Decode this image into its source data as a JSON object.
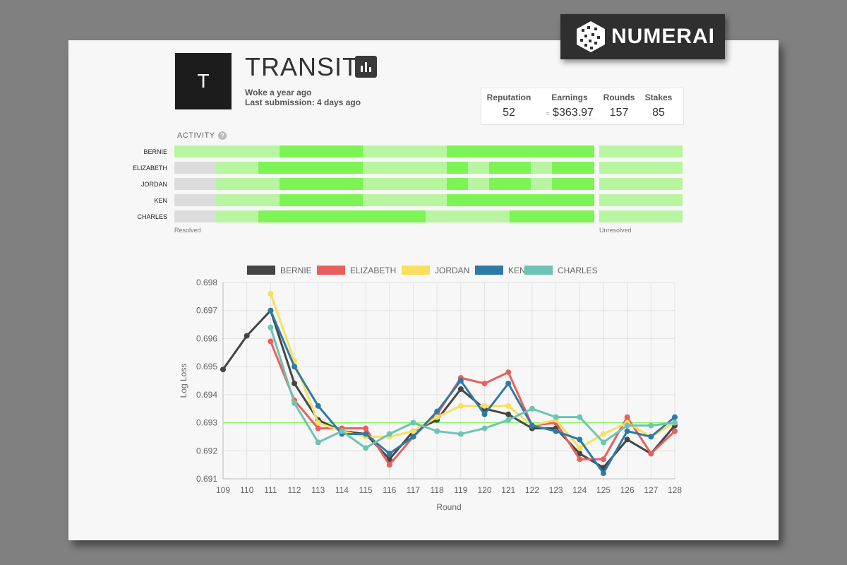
{
  "brand": {
    "logo_text": "NUMERAI"
  },
  "profile": {
    "avatar_letter": "T",
    "name": "TRANSIT",
    "woke": "Woke a year ago",
    "last_submission": "Last submission: 4 days ago"
  },
  "stats": [
    {
      "label": "Reputation",
      "value": "52"
    },
    {
      "label": "Earnings",
      "value": "$363.97",
      "prefix": "≈"
    },
    {
      "label": "Rounds",
      "value": "157"
    },
    {
      "label": "Stakes",
      "value": "85"
    }
  ],
  "activity": {
    "title": "ACTIVITY",
    "help_icon": "question-circle-icon",
    "resolved_label": "Resolved",
    "unresolved_label": "Unresolved",
    "colors": {
      "full": "#7cf455",
      "partial": "#b9f5a0",
      "none": "#dcdcdc"
    },
    "rows": [
      {
        "name": "BERNIE",
        "segments": [
          "p",
          "p",
          "p",
          "p",
          "p",
          "f",
          "f",
          "f",
          "f",
          "p",
          "p",
          "p",
          "p",
          "f",
          "f",
          "f",
          "f",
          "f",
          "f",
          "f",
          "f"
        ],
        "unresolved": "p"
      },
      {
        "name": "ELIZABETH",
        "segments": [
          "n",
          "n",
          "p",
          "p",
          "f",
          "f",
          "f",
          "f",
          "f",
          "p",
          "p",
          "p",
          "p",
          "f",
          "p",
          "f",
          "f",
          "p",
          "f",
          "f",
          "f"
        ],
        "unresolved": "p"
      },
      {
        "name": "JORDAN",
        "segments": [
          "n",
          "n",
          "p",
          "p",
          "p",
          "f",
          "f",
          "f",
          "f",
          "p",
          "p",
          "p",
          "p",
          "f",
          "p",
          "f",
          "f",
          "p",
          "f",
          "f",
          "f"
        ],
        "unresolved": "p"
      },
      {
        "name": "KEN",
        "segments": [
          "n",
          "n",
          "p",
          "p",
          "p",
          "f",
          "f",
          "f",
          "f",
          "p",
          "p",
          "p",
          "p",
          "f",
          "f",
          "f",
          "f",
          "f",
          "f",
          "f",
          "p"
        ],
        "unresolved": "p"
      },
      {
        "name": "CHARLES",
        "segments": [
          "n",
          "n",
          "p",
          "p",
          "f",
          "f",
          "f",
          "f",
          "f",
          "f",
          "f",
          "f",
          "p",
          "p",
          "p",
          "p",
          "f",
          "f",
          "f",
          "f",
          "f"
        ],
        "unresolved": "p"
      }
    ]
  },
  "chart_data": {
    "type": "line",
    "xlabel": "Round",
    "ylabel": "Log Loss",
    "x": [
      109,
      110,
      111,
      112,
      113,
      114,
      115,
      116,
      117,
      118,
      119,
      120,
      121,
      122,
      123,
      124,
      125,
      126,
      127,
      128
    ],
    "ylim": [
      0.691,
      0.698
    ],
    "yticks": [
      "0.698",
      "0.697",
      "0.696",
      "0.695",
      "0.694",
      "0.693",
      "0.692",
      "0.691"
    ],
    "reference_line": 0.693,
    "reference_color": "#7cf455",
    "legend_position": "top",
    "grid": true,
    "series": [
      {
        "name": "BERNIE",
        "color": "#454545",
        "values": [
          0.6949,
          0.6961,
          0.697,
          0.6944,
          0.6931,
          0.6927,
          0.6926,
          0.6917,
          0.6927,
          0.6931,
          0.6942,
          0.6935,
          0.6933,
          0.6928,
          0.6928,
          0.6919,
          0.6914,
          0.6924,
          0.6919,
          0.6929
        ]
      },
      {
        "name": "ELIZABETH",
        "color": "#e8605e",
        "values": [
          null,
          null,
          0.6959,
          0.6938,
          0.6928,
          0.6928,
          0.6928,
          0.6915,
          0.6925,
          0.6933,
          0.6946,
          0.6944,
          0.6948,
          0.6929,
          0.693,
          0.6917,
          0.6917,
          0.6932,
          0.6919,
          0.6927
        ]
      },
      {
        "name": "JORDAN",
        "color": "#f9df60",
        "values": [
          null,
          null,
          0.6976,
          0.6952,
          0.693,
          0.6927,
          0.6925,
          0.6925,
          0.6927,
          0.6932,
          0.6936,
          0.6936,
          0.6936,
          0.6929,
          0.6931,
          0.6921,
          0.6926,
          0.693,
          0.6925,
          0.693
        ]
      },
      {
        "name": "KEN",
        "color": "#2e7aa6",
        "values": [
          null,
          null,
          0.697,
          0.695,
          0.6936,
          0.6926,
          0.6926,
          0.6919,
          0.6925,
          0.6934,
          0.6945,
          0.6933,
          0.6944,
          0.6929,
          0.6927,
          0.6924,
          0.6912,
          0.6927,
          0.6925,
          0.6932
        ]
      },
      {
        "name": "CHARLES",
        "color": "#6fc3b2",
        "values": [
          null,
          null,
          0.6964,
          0.6937,
          0.6923,
          0.6927,
          0.6921,
          0.6926,
          0.693,
          0.6927,
          0.6926,
          0.6928,
          0.6931,
          0.6935,
          0.6932,
          0.6932,
          0.6923,
          0.6929,
          0.6929,
          0.693
        ]
      }
    ]
  }
}
